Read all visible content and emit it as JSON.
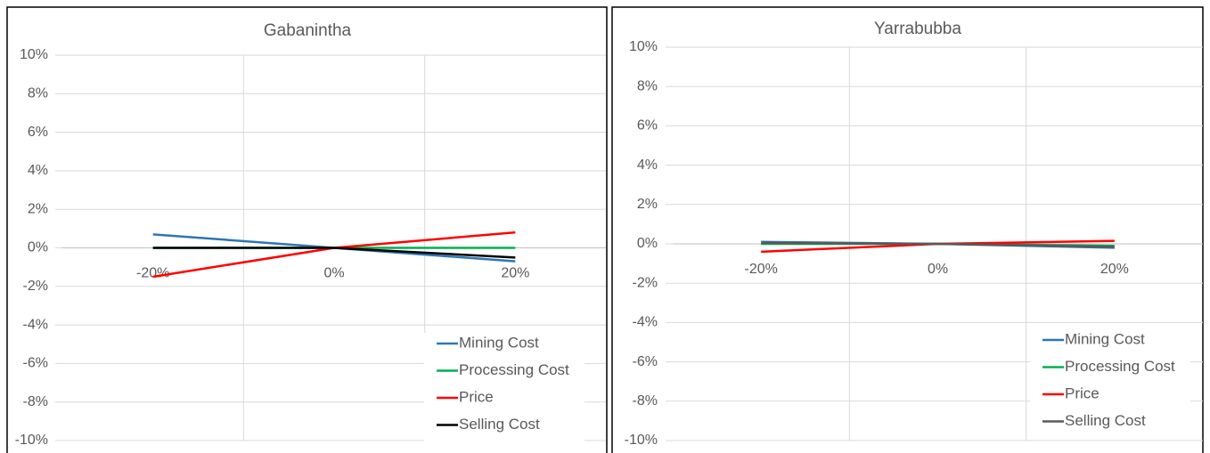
{
  "chart_data": [
    {
      "type": "line",
      "title": "Gabanintha",
      "categories": [
        "-20%",
        "0%",
        "20%"
      ],
      "series": [
        {
          "name": "Mining Cost",
          "color": "#2e75b6",
          "values": [
            0.7,
            0,
            -0.7
          ]
        },
        {
          "name": "Processing Cost",
          "color": "#00b050",
          "values": [
            0,
            0,
            0
          ]
        },
        {
          "name": "Price",
          "color": "#ff0000",
          "values": [
            -1.5,
            0,
            0.8
          ]
        },
        {
          "name": "Selling Cost",
          "color": "#000000",
          "values": [
            0,
            0,
            -0.5
          ]
        }
      ],
      "ylim": [
        -10,
        10
      ],
      "yticks": [
        {
          "value": -10,
          "label": "-10%"
        },
        {
          "value": -8,
          "label": "-8%"
        },
        {
          "value": -6,
          "label": "-6%"
        },
        {
          "value": -4,
          "label": "-4%"
        },
        {
          "value": -2,
          "label": "-2%"
        },
        {
          "value": 0,
          "label": "0%"
        },
        {
          "value": 2,
          "label": "2%"
        },
        {
          "value": 4,
          "label": "4%"
        },
        {
          "value": 6,
          "label": "6%"
        },
        {
          "value": 8,
          "label": "8%"
        },
        {
          "value": 10,
          "label": "10%"
        }
      ],
      "grid": true,
      "legend": "bottom-right"
    },
    {
      "type": "line",
      "title": "Yarrabubba",
      "categories": [
        "-20%",
        "0%",
        "20%"
      ],
      "series": [
        {
          "name": "Mining Cost",
          "color": "#2e75b6",
          "values": [
            0.1,
            0,
            -0.2
          ]
        },
        {
          "name": "Processing Cost",
          "color": "#00b050",
          "values": [
            0,
            0,
            -0.1
          ]
        },
        {
          "name": "Price",
          "color": "#ff0000",
          "values": [
            -0.4,
            0,
            0.15
          ]
        },
        {
          "name": "Selling Cost",
          "color": "#595959",
          "values": [
            0.05,
            0,
            -0.15
          ]
        }
      ],
      "ylim": [
        -10,
        10
      ],
      "yticks": [
        {
          "value": -10,
          "label": "-10%"
        },
        {
          "value": -8,
          "label": "-8%"
        },
        {
          "value": -6,
          "label": "-6%"
        },
        {
          "value": -4,
          "label": "-4%"
        },
        {
          "value": -2,
          "label": "-2%"
        },
        {
          "value": 0,
          "label": "0%"
        },
        {
          "value": 2,
          "label": "2%"
        },
        {
          "value": 4,
          "label": "4%"
        },
        {
          "value": 6,
          "label": "6%"
        },
        {
          "value": 8,
          "label": "8%"
        },
        {
          "value": 10,
          "label": "10%"
        }
      ],
      "grid": true,
      "legend": "bottom-right"
    }
  ]
}
